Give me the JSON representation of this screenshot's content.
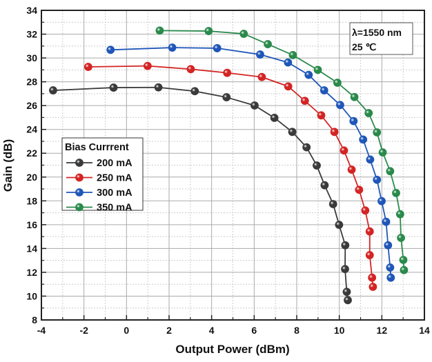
{
  "chart_data": {
    "type": "line",
    "title": "",
    "xlabel": "Output Power (dBm)",
    "ylabel": "Gain (dB)",
    "xlim": [
      -4,
      14
    ],
    "ylim": [
      8,
      34
    ],
    "xticks": [
      -4,
      -2,
      0,
      2,
      4,
      6,
      8,
      10,
      12,
      14
    ],
    "yticks": [
      8,
      10,
      12,
      14,
      16,
      18,
      20,
      22,
      24,
      26,
      28,
      30,
      32,
      34
    ],
    "grid": true,
    "legend": {
      "title": "Bias Currrent",
      "placement": "center-left"
    },
    "annotation": [
      "λ=1550 nm",
      "25 ℃"
    ],
    "series": [
      {
        "name": "200 mA",
        "color": "#3a3a3a",
        "x": [
          -3.45,
          -0.61,
          1.5,
          3.21,
          4.7,
          6.02,
          6.95,
          7.79,
          8.46,
          8.94,
          9.31,
          9.71,
          9.99,
          10.28,
          10.27,
          10.35,
          10.4
        ],
        "y": [
          27.28,
          27.51,
          27.53,
          27.21,
          26.7,
          26.01,
          24.97,
          23.79,
          22.5,
          20.97,
          19.31,
          17.73,
          15.99,
          14.27,
          12.27,
          10.36,
          9.66
        ]
      },
      {
        "name": "250 mA",
        "color": "#d42424",
        "x": [
          -1.8,
          0.99,
          3.02,
          4.73,
          6.36,
          7.6,
          8.38,
          9.15,
          9.77,
          10.22,
          10.58,
          10.93,
          11.22,
          11.43,
          11.43,
          11.54,
          11.58
        ],
        "y": [
          29.25,
          29.33,
          29.06,
          28.75,
          28.4,
          27.61,
          26.4,
          25.18,
          23.79,
          22.23,
          20.62,
          18.93,
          17.19,
          15.43,
          13.44,
          11.55,
          10.78
        ]
      },
      {
        "name": "300 mA",
        "color": "#1f56b8",
        "x": [
          -0.75,
          2.15,
          4.26,
          6.28,
          7.59,
          8.56,
          9.29,
          10.04,
          10.67,
          11.12,
          11.45,
          11.77,
          11.99,
          12.2,
          12.29,
          12.39,
          12.42
        ],
        "y": [
          30.68,
          30.87,
          30.82,
          30.29,
          29.62,
          28.58,
          27.28,
          26.05,
          24.7,
          23.15,
          21.47,
          19.77,
          17.98,
          16.24,
          14.27,
          12.4,
          11.55
        ]
      },
      {
        "name": "350 mA",
        "color": "#2a8a4c",
        "x": [
          1.56,
          3.86,
          5.51,
          6.64,
          7.82,
          8.99,
          9.91,
          10.71,
          11.38,
          11.77,
          12.04,
          12.39,
          12.67,
          12.86,
          12.9,
          13.01,
          13.04
        ],
        "y": [
          32.3,
          32.26,
          32.03,
          31.16,
          30.24,
          29.0,
          27.92,
          26.72,
          25.37,
          23.75,
          22.07,
          20.49,
          18.66,
          16.88,
          14.89,
          13.04,
          12.19
        ]
      }
    ]
  }
}
